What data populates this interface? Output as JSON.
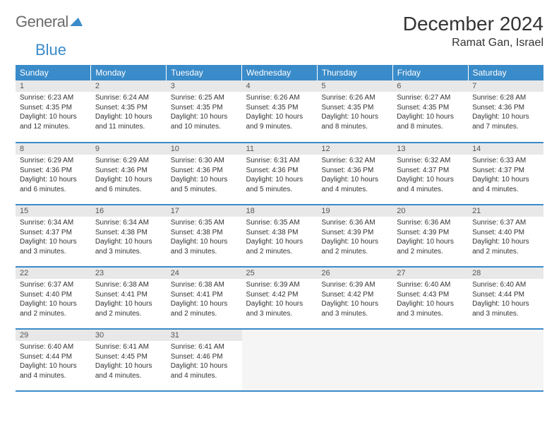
{
  "logo": {
    "word1": "General",
    "word2": "Blue"
  },
  "title": "December 2024",
  "location": "Ramat Gan, Israel",
  "weekday_headers": [
    "Sunday",
    "Monday",
    "Tuesday",
    "Wednesday",
    "Thursday",
    "Friday",
    "Saturday"
  ],
  "colors": {
    "header_bg": "#3a8bc9",
    "header_fg": "#ffffff",
    "daynum_bg": "#e8e8e8",
    "border": "#3a8bc9",
    "logo_gray": "#6b6b6b",
    "logo_blue": "#3a8bc9",
    "text": "#333333",
    "empty_bg": "#f5f5f5"
  },
  "days": [
    {
      "n": "1",
      "sunrise": "Sunrise: 6:23 AM",
      "sunset": "Sunset: 4:35 PM",
      "daylight": "Daylight: 10 hours and 12 minutes."
    },
    {
      "n": "2",
      "sunrise": "Sunrise: 6:24 AM",
      "sunset": "Sunset: 4:35 PM",
      "daylight": "Daylight: 10 hours and 11 minutes."
    },
    {
      "n": "3",
      "sunrise": "Sunrise: 6:25 AM",
      "sunset": "Sunset: 4:35 PM",
      "daylight": "Daylight: 10 hours and 10 minutes."
    },
    {
      "n": "4",
      "sunrise": "Sunrise: 6:26 AM",
      "sunset": "Sunset: 4:35 PM",
      "daylight": "Daylight: 10 hours and 9 minutes."
    },
    {
      "n": "5",
      "sunrise": "Sunrise: 6:26 AM",
      "sunset": "Sunset: 4:35 PM",
      "daylight": "Daylight: 10 hours and 8 minutes."
    },
    {
      "n": "6",
      "sunrise": "Sunrise: 6:27 AM",
      "sunset": "Sunset: 4:35 PM",
      "daylight": "Daylight: 10 hours and 8 minutes."
    },
    {
      "n": "7",
      "sunrise": "Sunrise: 6:28 AM",
      "sunset": "Sunset: 4:36 PM",
      "daylight": "Daylight: 10 hours and 7 minutes."
    },
    {
      "n": "8",
      "sunrise": "Sunrise: 6:29 AM",
      "sunset": "Sunset: 4:36 PM",
      "daylight": "Daylight: 10 hours and 6 minutes."
    },
    {
      "n": "9",
      "sunrise": "Sunrise: 6:29 AM",
      "sunset": "Sunset: 4:36 PM",
      "daylight": "Daylight: 10 hours and 6 minutes."
    },
    {
      "n": "10",
      "sunrise": "Sunrise: 6:30 AM",
      "sunset": "Sunset: 4:36 PM",
      "daylight": "Daylight: 10 hours and 5 minutes."
    },
    {
      "n": "11",
      "sunrise": "Sunrise: 6:31 AM",
      "sunset": "Sunset: 4:36 PM",
      "daylight": "Daylight: 10 hours and 5 minutes."
    },
    {
      "n": "12",
      "sunrise": "Sunrise: 6:32 AM",
      "sunset": "Sunset: 4:36 PM",
      "daylight": "Daylight: 10 hours and 4 minutes."
    },
    {
      "n": "13",
      "sunrise": "Sunrise: 6:32 AM",
      "sunset": "Sunset: 4:37 PM",
      "daylight": "Daylight: 10 hours and 4 minutes."
    },
    {
      "n": "14",
      "sunrise": "Sunrise: 6:33 AM",
      "sunset": "Sunset: 4:37 PM",
      "daylight": "Daylight: 10 hours and 4 minutes."
    },
    {
      "n": "15",
      "sunrise": "Sunrise: 6:34 AM",
      "sunset": "Sunset: 4:37 PM",
      "daylight": "Daylight: 10 hours and 3 minutes."
    },
    {
      "n": "16",
      "sunrise": "Sunrise: 6:34 AM",
      "sunset": "Sunset: 4:38 PM",
      "daylight": "Daylight: 10 hours and 3 minutes."
    },
    {
      "n": "17",
      "sunrise": "Sunrise: 6:35 AM",
      "sunset": "Sunset: 4:38 PM",
      "daylight": "Daylight: 10 hours and 3 minutes."
    },
    {
      "n": "18",
      "sunrise": "Sunrise: 6:35 AM",
      "sunset": "Sunset: 4:38 PM",
      "daylight": "Daylight: 10 hours and 2 minutes."
    },
    {
      "n": "19",
      "sunrise": "Sunrise: 6:36 AM",
      "sunset": "Sunset: 4:39 PM",
      "daylight": "Daylight: 10 hours and 2 minutes."
    },
    {
      "n": "20",
      "sunrise": "Sunrise: 6:36 AM",
      "sunset": "Sunset: 4:39 PM",
      "daylight": "Daylight: 10 hours and 2 minutes."
    },
    {
      "n": "21",
      "sunrise": "Sunrise: 6:37 AM",
      "sunset": "Sunset: 4:40 PM",
      "daylight": "Daylight: 10 hours and 2 minutes."
    },
    {
      "n": "22",
      "sunrise": "Sunrise: 6:37 AM",
      "sunset": "Sunset: 4:40 PM",
      "daylight": "Daylight: 10 hours and 2 minutes."
    },
    {
      "n": "23",
      "sunrise": "Sunrise: 6:38 AM",
      "sunset": "Sunset: 4:41 PM",
      "daylight": "Daylight: 10 hours and 2 minutes."
    },
    {
      "n": "24",
      "sunrise": "Sunrise: 6:38 AM",
      "sunset": "Sunset: 4:41 PM",
      "daylight": "Daylight: 10 hours and 2 minutes."
    },
    {
      "n": "25",
      "sunrise": "Sunrise: 6:39 AM",
      "sunset": "Sunset: 4:42 PM",
      "daylight": "Daylight: 10 hours and 3 minutes."
    },
    {
      "n": "26",
      "sunrise": "Sunrise: 6:39 AM",
      "sunset": "Sunset: 4:42 PM",
      "daylight": "Daylight: 10 hours and 3 minutes."
    },
    {
      "n": "27",
      "sunrise": "Sunrise: 6:40 AM",
      "sunset": "Sunset: 4:43 PM",
      "daylight": "Daylight: 10 hours and 3 minutes."
    },
    {
      "n": "28",
      "sunrise": "Sunrise: 6:40 AM",
      "sunset": "Sunset: 4:44 PM",
      "daylight": "Daylight: 10 hours and 3 minutes."
    },
    {
      "n": "29",
      "sunrise": "Sunrise: 6:40 AM",
      "sunset": "Sunset: 4:44 PM",
      "daylight": "Daylight: 10 hours and 4 minutes."
    },
    {
      "n": "30",
      "sunrise": "Sunrise: 6:41 AM",
      "sunset": "Sunset: 4:45 PM",
      "daylight": "Daylight: 10 hours and 4 minutes."
    },
    {
      "n": "31",
      "sunrise": "Sunrise: 6:41 AM",
      "sunset": "Sunset: 4:46 PM",
      "daylight": "Daylight: 10 hours and 4 minutes."
    }
  ],
  "layout": {
    "columns": 7,
    "rows": 5,
    "start_weekday": 0,
    "trailing_empty": 4
  }
}
